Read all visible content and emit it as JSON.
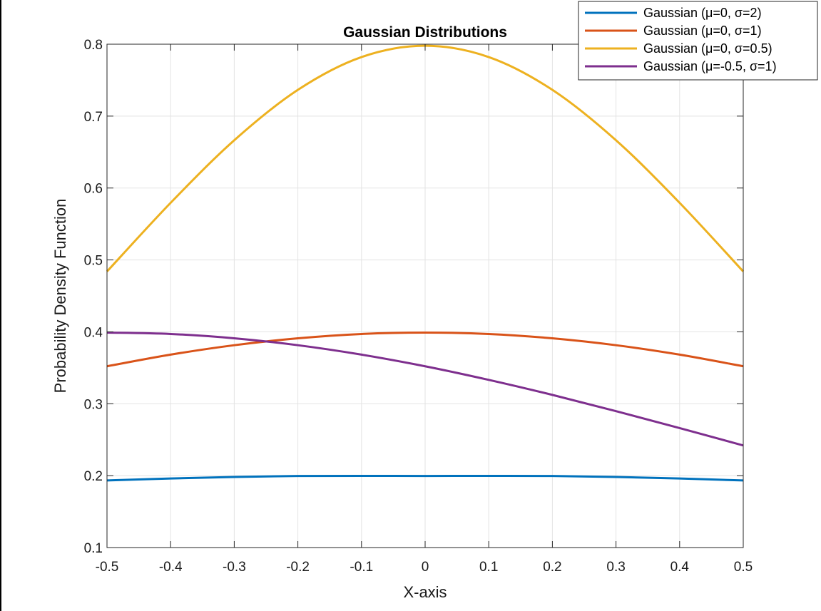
{
  "chart_data": {
    "type": "line",
    "title": "Gaussian Distributions",
    "xlabel": "X-axis",
    "ylabel": "Probability Density Function",
    "xlim": [
      -0.5,
      0.5
    ],
    "ylim": [
      0.1,
      0.8
    ],
    "xticks": [
      -0.5,
      -0.4,
      -0.3,
      -0.2,
      -0.1,
      0,
      0.1,
      0.2,
      0.3,
      0.4,
      0.5
    ],
    "xtick_labels": [
      "-0.5",
      "-0.4",
      "-0.3",
      "-0.2",
      "-0.1",
      "0",
      "0.1",
      "0.2",
      "0.3",
      "0.4",
      "0.5"
    ],
    "yticks": [
      0.1,
      0.2,
      0.3,
      0.4,
      0.5,
      0.6,
      0.7,
      0.8
    ],
    "ytick_labels": [
      "0.1",
      "0.2",
      "0.3",
      "0.4",
      "0.5",
      "0.6",
      "0.7",
      "0.8"
    ],
    "grid": true,
    "legend_position": "top-right",
    "x": [
      -0.5,
      -0.4,
      -0.3,
      -0.2,
      -0.1,
      0,
      0.1,
      0.2,
      0.3,
      0.4,
      0.5
    ],
    "series": [
      {
        "name": "Gaussian  (μ=0,  σ=2)",
        "color": "#0072BD",
        "values": [
          0.1933,
          0.196,
          0.1982,
          0.1995,
          0.1997,
          0.1995,
          0.1997,
          0.1995,
          0.1982,
          0.196,
          0.1933
        ]
      },
      {
        "name": "Gaussian  (μ=0,  σ=1)",
        "color": "#D95319",
        "values": [
          0.3521,
          0.3683,
          0.3814,
          0.391,
          0.397,
          0.3989,
          0.397,
          0.391,
          0.3814,
          0.3683,
          0.3521
        ]
      },
      {
        "name": "Gaussian  (μ=0,  σ=0.5)",
        "color": "#EDB120",
        "values": [
          0.4839,
          0.5794,
          0.6664,
          0.7365,
          0.7821,
          0.7979,
          0.7821,
          0.7365,
          0.6664,
          0.5794,
          0.4839
        ]
      },
      {
        "name": "Gaussian  (μ=-0.5,  σ=1)",
        "color": "#7E2F8E",
        "values": [
          0.3989,
          0.397,
          0.391,
          0.3814,
          0.3683,
          0.3521,
          0.3332,
          0.3123,
          0.2897,
          0.2661,
          0.242
        ]
      }
    ]
  }
}
